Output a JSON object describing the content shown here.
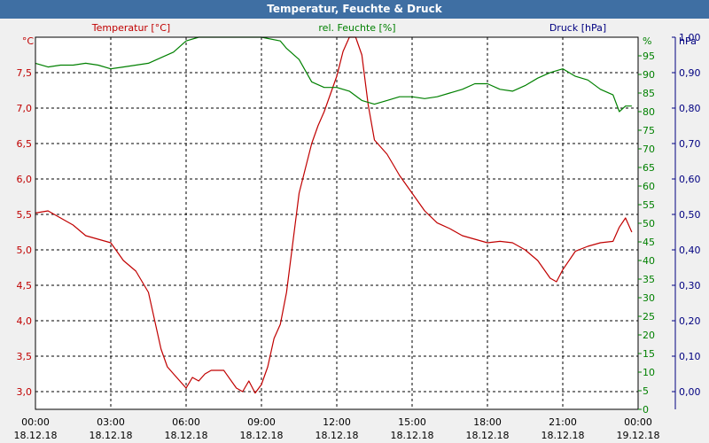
{
  "title": "Temperatur, Feuchte & Druck",
  "colors": {
    "temperature": "#c00000",
    "humidity": "#008000",
    "pressure": "#000080",
    "titlebar": "#3f6fa3",
    "plot_bg": "#ffffff",
    "grid": "#000000"
  },
  "chart_data": {
    "type": "line",
    "title": "Temperatur, Feuchte & Druck",
    "grid": true,
    "x_axis": {
      "range": [
        "18.12.18 00:00",
        "19.12.18 00:00"
      ],
      "tick_labels": [
        {
          "time": "00:00",
          "date": "18.12.18"
        },
        {
          "time": "03:00",
          "date": "18.12.18"
        },
        {
          "time": "06:00",
          "date": "18.12.18"
        },
        {
          "time": "09:00",
          "date": "18.12.18"
        },
        {
          "time": "12:00",
          "date": "18.12.18"
        },
        {
          "time": "15:00",
          "date": "18.12.18"
        },
        {
          "time": "18:00",
          "date": "18.12.18"
        },
        {
          "time": "21:00",
          "date": "18.12.18"
        },
        {
          "time": "00:00",
          "date": "19.12.18"
        }
      ]
    },
    "axes": {
      "temperature": {
        "label": "Temperatur [°C]",
        "unit": "°C",
        "position": "left",
        "range": [
          2.75,
          8.0
        ],
        "ticks": [
          "3,0",
          "3,5",
          "4,0",
          "4,5",
          "5,0",
          "5,5",
          "6,0",
          "6,5",
          "7,0",
          "7,5"
        ]
      },
      "humidity": {
        "label": "rel. Feuchte [%]",
        "unit": "%",
        "position": "right",
        "range": [
          0,
          100
        ],
        "ticks": [
          "0",
          "5",
          "10",
          "15",
          "20",
          "25",
          "30",
          "35",
          "40",
          "45",
          "50",
          "55",
          "60",
          "65",
          "70",
          "75",
          "80",
          "85",
          "90",
          "95"
        ]
      },
      "pressure": {
        "label": "Druck [hPa]",
        "unit": "hPa",
        "position": "right",
        "range": [
          -0.05,
          1.0
        ],
        "ticks": [
          "0,00",
          "0,10",
          "0,20",
          "0,30",
          "0,40",
          "0,50",
          "0,60",
          "0,70",
          "0,80",
          "0,90",
          "1,00"
        ]
      }
    },
    "series": [
      {
        "name": "Temperatur [°C]",
        "axis": "temperature",
        "color": "#c00000",
        "hours": [
          0,
          0.5,
          1,
          1.5,
          2,
          2.5,
          3,
          3.5,
          4,
          4.5,
          5,
          5.25,
          5.5,
          6,
          6.25,
          6.5,
          6.75,
          7,
          7.5,
          8,
          8.25,
          8.5,
          8.75,
          9,
          9.25,
          9.5,
          9.75,
          10,
          10.5,
          11,
          11.25,
          11.5,
          12,
          12.25,
          12.5,
          12.75,
          13,
          13.25,
          13.5,
          13.75,
          14,
          14.25,
          14.5,
          15,
          15.5,
          16,
          16.5,
          17,
          17.5,
          18,
          18.5,
          19,
          19.5,
          20,
          20.5,
          20.75,
          21,
          21.5,
          22,
          22.5,
          23,
          23.25,
          23.5,
          23.75
        ],
        "values": [
          5.52,
          5.55,
          5.45,
          5.35,
          5.2,
          5.15,
          5.1,
          4.85,
          4.7,
          4.4,
          3.6,
          3.35,
          3.25,
          3.05,
          3.2,
          3.15,
          3.25,
          3.3,
          3.3,
          3.05,
          3.0,
          3.15,
          2.98,
          3.1,
          3.35,
          3.75,
          3.95,
          4.4,
          5.8,
          6.5,
          6.75,
          6.95,
          7.45,
          7.8,
          8.0,
          8.0,
          7.75,
          7.05,
          6.55,
          6.45,
          6.35,
          6.2,
          6.05,
          5.8,
          5.55,
          5.38,
          5.3,
          5.2,
          5.15,
          5.1,
          5.12,
          5.1,
          5.0,
          4.85,
          4.6,
          4.55,
          4.72,
          4.98,
          5.05,
          5.1,
          5.12,
          5.32,
          5.45,
          5.25
        ]
      },
      {
        "name": "rel. Feuchte [%]",
        "axis": "humidity",
        "color": "#008000",
        "hours": [
          0,
          0.5,
          1,
          1.5,
          2,
          2.5,
          3,
          3.5,
          4,
          4.5,
          5,
          5.5,
          6,
          6.5,
          7,
          8,
          9,
          9.75,
          10,
          10.5,
          11,
          11.5,
          12,
          12.5,
          13,
          13.5,
          14,
          14.5,
          15,
          15.5,
          16,
          16.5,
          17,
          17.5,
          18,
          18.5,
          19,
          19.5,
          20,
          20.5,
          21,
          21.5,
          22,
          22.5,
          23,
          23.25,
          23.5,
          23.75
        ],
        "values": [
          93,
          92,
          92.5,
          92.5,
          93,
          92.5,
          91.5,
          92,
          92.5,
          93,
          94.5,
          96,
          99,
          100,
          100,
          100,
          100,
          99,
          97,
          94,
          88,
          86.5,
          86.5,
          85.5,
          83,
          82,
          83,
          84,
          84,
          83.5,
          84,
          85,
          86,
          87.5,
          87.5,
          86,
          85.5,
          87,
          89,
          90.5,
          91.5,
          89.5,
          88.5,
          86,
          84.5,
          80,
          81.5,
          81.5
        ]
      }
    ]
  }
}
